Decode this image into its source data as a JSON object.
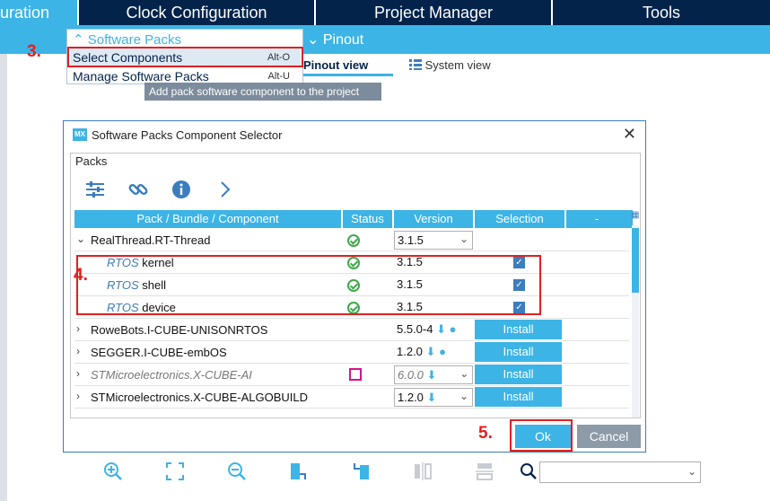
{
  "top_nav": {
    "tabs": [
      "uration",
      "Clock Configuration",
      "Project Manager",
      "Tools"
    ]
  },
  "subbar": {
    "pinout": "Pinout"
  },
  "view_bar": {
    "pinout_view": "Pinout view",
    "system_view": "System view"
  },
  "menu": {
    "header": "Software Packs",
    "items": [
      {
        "label": "Select Components",
        "shortcut": "Alt-O"
      },
      {
        "label": "Manage Software Packs",
        "shortcut": "Alt-U"
      }
    ],
    "tooltip": "Add pack software component to the project"
  },
  "steps": {
    "s3": "3.",
    "s4": "4.",
    "s5": "5."
  },
  "dialog": {
    "title": "Software Packs Component Selector",
    "logo": "MX",
    "packs_label": "Packs",
    "toolbar_icons": [
      "filter-icon",
      "link-icon",
      "info-icon",
      "chevron-right-icon"
    ],
    "columns": [
      "Pack / Bundle / Component",
      "Status",
      "Version",
      "Selection",
      "-"
    ],
    "rows": [
      {
        "name": "RealThread.RT-Thread",
        "version": "3.1.5",
        "status": "ok"
      },
      {
        "prefix": "RTOS",
        "name": "kernel",
        "version": "3.1.5",
        "status": "ok",
        "selected": "✓"
      },
      {
        "prefix": "RTOS",
        "name": "shell",
        "version": "3.1.5",
        "status": "ok",
        "selected": "✓"
      },
      {
        "prefix": "RTOS",
        "name": "device",
        "version": "3.1.5",
        "status": "ok",
        "selected": "✓"
      },
      {
        "name": "RoweBots.I-CUBE-UNISONRTOS",
        "version": "5.5.0-4",
        "action": "Install"
      },
      {
        "name": "SEGGER.I-CUBE-embOS",
        "version": "1.2.0",
        "action": "Install"
      },
      {
        "name": "STMicroelectronics.X-CUBE-AI",
        "version": "6.0.0",
        "action": "Install",
        "status": "chip"
      },
      {
        "name": "STMicroelectronics.X-CUBE-ALGOBUILD",
        "version": "1.2.0",
        "action": "Install"
      }
    ],
    "ok_label": "Ok",
    "cancel_label": "Cancel"
  },
  "bottom_toolbar": {
    "icons": [
      "zoom-in-icon",
      "fit-screen-icon",
      "zoom-out-icon",
      "rotate-right-icon",
      "rotate-left-icon",
      "flip-horizontal-icon",
      "flip-vertical-icon",
      "search-icon"
    ],
    "zoom_value": ""
  },
  "colors": {
    "nav": "#03234b",
    "accent": "#3cb4e6",
    "highlight": "#e02020"
  }
}
